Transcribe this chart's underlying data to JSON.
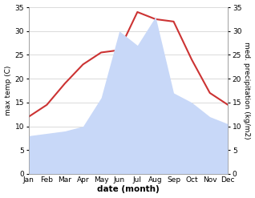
{
  "months": [
    "Jan",
    "Feb",
    "Mar",
    "Apr",
    "May",
    "Jun",
    "Jul",
    "Aug",
    "Sep",
    "Oct",
    "Nov",
    "Dec"
  ],
  "temperature": [
    12,
    14.5,
    19,
    23,
    25.5,
    26,
    34,
    32.5,
    32,
    24,
    17,
    14.5
  ],
  "precipitation": [
    8,
    8.5,
    9,
    10,
    16,
    30,
    27,
    33,
    17,
    15,
    12,
    10.5
  ],
  "temp_color": "#cc3333",
  "precip_fill_color": "#c8d8f8",
  "background_color": "#ffffff",
  "xlabel": "date (month)",
  "ylabel_left": "max temp (C)",
  "ylabel_right": "med. precipitation (kg/m2)",
  "ylim_left": [
    0,
    35
  ],
  "ylim_right": [
    0,
    35
  ],
  "yticks_left": [
    0,
    5,
    10,
    15,
    20,
    25,
    30,
    35
  ],
  "yticks_right": [
    0,
    5,
    10,
    15,
    20,
    25,
    30,
    35
  ]
}
